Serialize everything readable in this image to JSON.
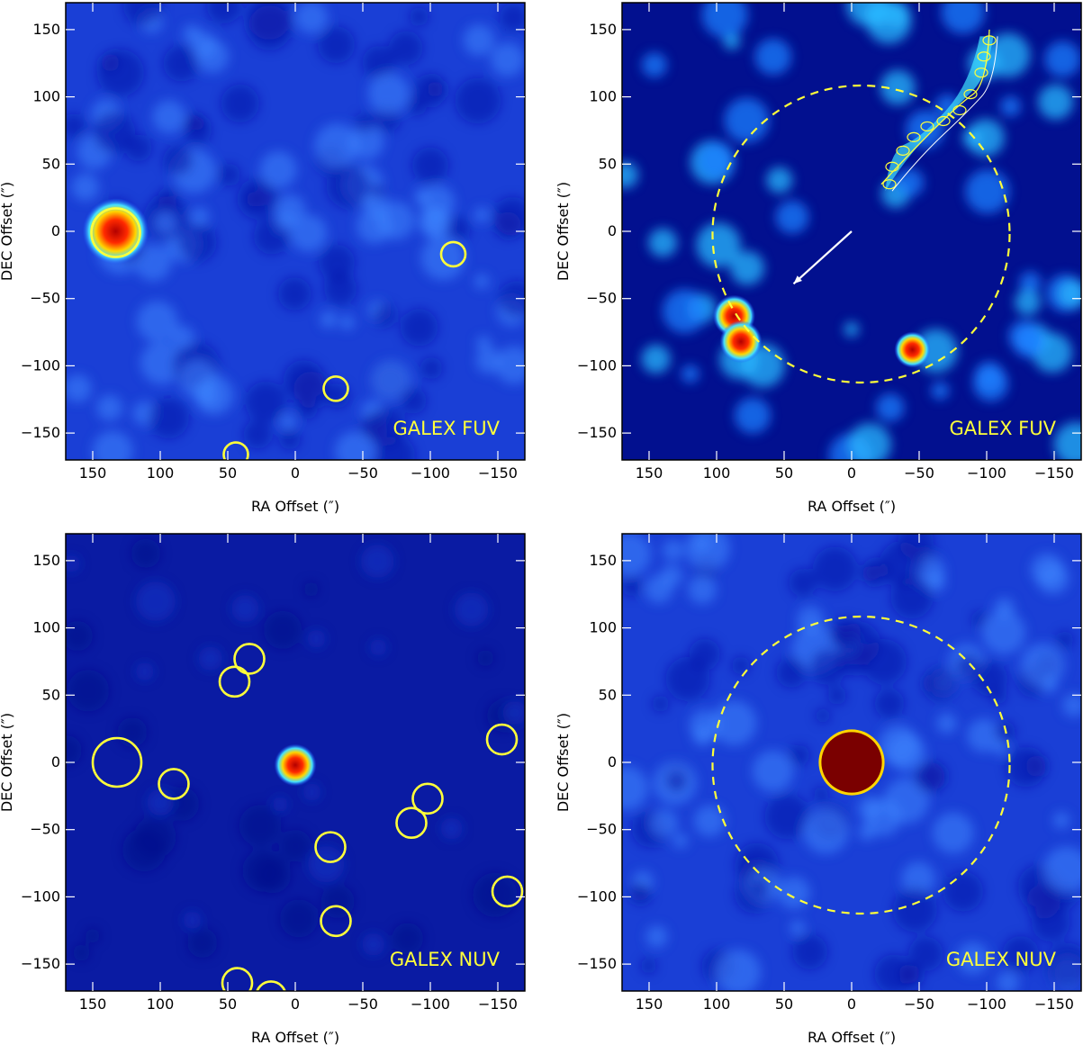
{
  "figure": {
    "colors": {
      "background": "#1a3fd6",
      "background_dark": "#0f23b3",
      "background_faint": "#0a1ba3",
      "marker": "#ffff3a",
      "hot": "#b30000"
    },
    "axes": {
      "xlabel": "RA Offset (″)",
      "ylabel": "DEC Offset (″)",
      "xlim": [
        170,
        -170
      ],
      "ylim": [
        -170,
        170
      ],
      "x_ticks": [
        "150",
        "100",
        "50",
        "0",
        "−50",
        "−100",
        "−150"
      ],
      "y_ticks": [
        "150",
        "100",
        "50",
        "0",
        "−50",
        "−100",
        "−150"
      ],
      "x_tick_values": [
        150,
        100,
        50,
        0,
        -50,
        -100,
        -150
      ],
      "y_tick_values": [
        150,
        100,
        50,
        0,
        -50,
        -100,
        -150
      ]
    },
    "panels": [
      {
        "id": "top-left",
        "band_label": "GALEX FUV",
        "background": "bright",
        "sources": [
          {
            "ra": 133,
            "dec": 0,
            "size": 11,
            "hot": true
          }
        ],
        "circles": [
          {
            "ra": 133,
            "dec": -1,
            "r": 18
          },
          {
            "ra": -117,
            "dec": -17,
            "r": 9
          },
          {
            "ra": -30,
            "dec": -117,
            "r": 9
          },
          {
            "ra": 44,
            "dec": -166,
            "r": 9
          }
        ],
        "dashed_circle": null
      },
      {
        "id": "top-right",
        "band_label": "GALEX FUV",
        "background": "dark",
        "sources": [
          {
            "ra": 87,
            "dec": -63,
            "size": 7,
            "hot": true
          },
          {
            "ra": 82,
            "dec": -82,
            "size": 7,
            "hot": true
          },
          {
            "ra": -45,
            "dec": -88,
            "size": 6,
            "hot": true
          }
        ],
        "circles": [],
        "dashed_circle": {
          "ra": -7,
          "dec": -2,
          "r": 110
        },
        "arrow": {
          "from": [
            0,
            0
          ],
          "to": [
            43,
            -39
          ]
        },
        "contour_region": true
      },
      {
        "id": "bottom-left",
        "band_label": "GALEX NUV",
        "background": "faint",
        "sources": [
          {
            "ra": 0,
            "dec": -2,
            "size": 7,
            "hot": true
          }
        ],
        "circles": [
          {
            "ra": 132,
            "dec": 0,
            "r": 18
          },
          {
            "ra": 90,
            "dec": -16,
            "r": 11
          },
          {
            "ra": 34,
            "dec": 77,
            "r": 11
          },
          {
            "ra": 45,
            "dec": 60,
            "r": 11
          },
          {
            "ra": -98,
            "dec": -27,
            "r": 11
          },
          {
            "ra": -86,
            "dec": -45,
            "r": 11
          },
          {
            "ra": -26,
            "dec": -63,
            "r": 11
          },
          {
            "ra": -30,
            "dec": -118,
            "r": 11
          },
          {
            "ra": -153,
            "dec": 17,
            "r": 11
          },
          {
            "ra": -157,
            "dec": -96,
            "r": 11
          },
          {
            "ra": 43,
            "dec": -164,
            "r": 11
          },
          {
            "ra": 18,
            "dec": -174,
            "r": 11
          }
        ],
        "dashed_circle": null
      },
      {
        "id": "bottom-right",
        "band_label": "GALEX NUV",
        "background": "bright",
        "sources": [
          {
            "ra": 0,
            "dec": 0,
            "size": 14,
            "hot": true,
            "saturated": true
          }
        ],
        "circles": [],
        "dashed_circle": {
          "ra": -7,
          "dec": -2,
          "r": 110
        }
      }
    ]
  }
}
